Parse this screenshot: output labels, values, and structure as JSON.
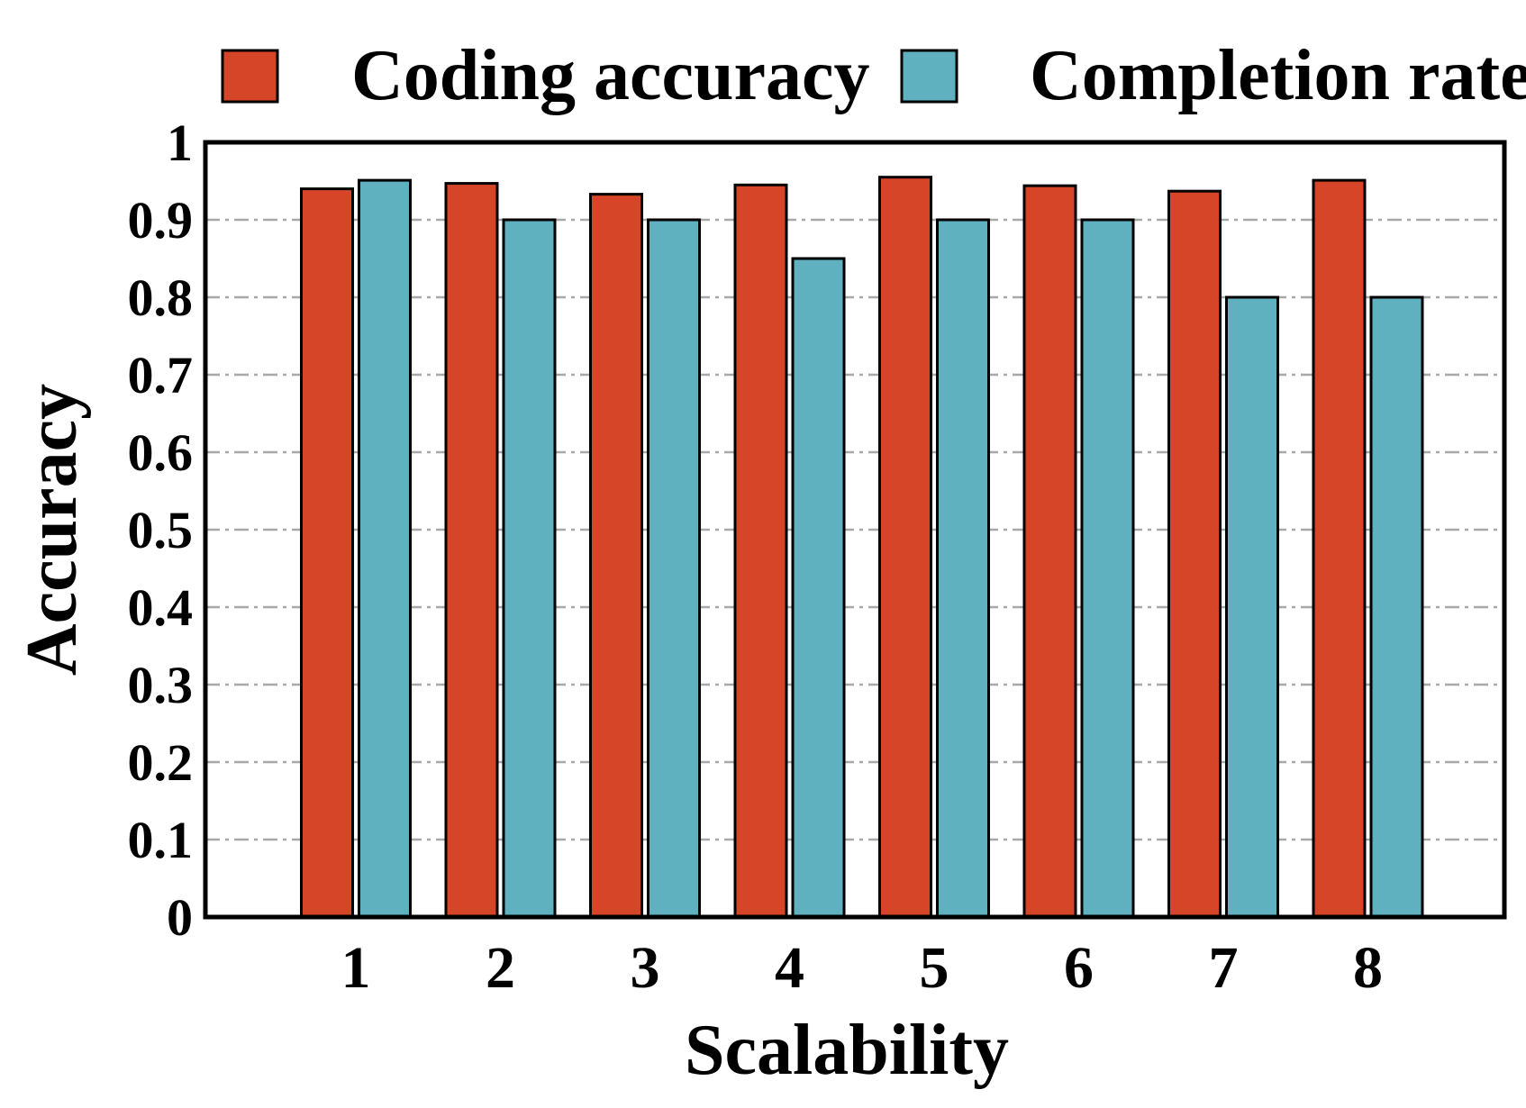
{
  "chart_data": {
    "type": "bar",
    "xlabel": "Scalability",
    "ylabel": "Accuracy",
    "categories": [
      "1",
      "2",
      "3",
      "4",
      "5",
      "6",
      "7",
      "8"
    ],
    "series": [
      {
        "name": "Coding accuracy",
        "color": "#d64527",
        "values": [
          0.94,
          0.947,
          0.933,
          0.945,
          0.955,
          0.944,
          0.937,
          0.951
        ]
      },
      {
        "name": "Completion rate",
        "color": "#5fb1c0",
        "values": [
          0.951,
          0.9,
          0.9,
          0.85,
          0.9,
          0.9,
          0.8,
          0.8
        ]
      }
    ],
    "ylim": [
      0,
      1
    ],
    "yticks": [
      "0",
      "0.1",
      "0.2",
      "0.3",
      "0.4",
      "0.5",
      "0.6",
      "0.7",
      "0.8",
      "0.9",
      "1"
    ],
    "grid": true,
    "legend_position": "top"
  }
}
